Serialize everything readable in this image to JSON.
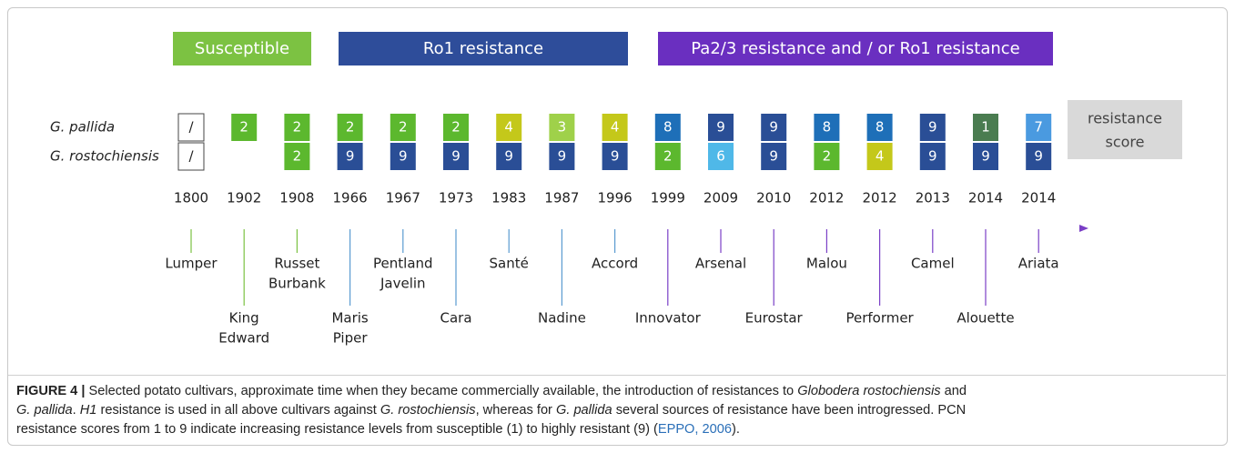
{
  "figure": {
    "groups": [
      {
        "label": "Susceptible",
        "color": "#7cc242"
      },
      {
        "label": "Ro1 resistance",
        "color": "#2e4d9a"
      },
      {
        "label": "Pa2/3 resistance and / or Ro1 resistance",
        "color": "#6a2fc0"
      }
    ],
    "row_labels": [
      "G. pallida",
      "G. rostochiensis"
    ],
    "legend": [
      "resistance",
      "score"
    ],
    "columns": [
      {
        "year": "1800",
        "cultivar": [
          "Lumper"
        ],
        "line_color": "#7cc242",
        "pallida": {
          "score": "/",
          "color": "#ffffff"
        },
        "rostochiensis": {
          "score": "/",
          "color": "#ffffff"
        }
      },
      {
        "year": "1902",
        "cultivar": [
          "King",
          "Edward"
        ],
        "line_color": "#7cc242",
        "pallida": {
          "score": "2",
          "color": "#5cb82e"
        },
        "rostochiensis": null
      },
      {
        "year": "1908",
        "cultivar": [
          "Russet",
          "Burbank"
        ],
        "line_color": "#7cc242",
        "pallida": {
          "score": "2",
          "color": "#5cb82e"
        },
        "rostochiensis": {
          "score": "2",
          "color": "#5cb82e"
        }
      },
      {
        "year": "1966",
        "cultivar": [
          "Maris",
          "Piper"
        ],
        "line_color": "#5a9bd0",
        "pallida": {
          "score": "2",
          "color": "#5cb82e"
        },
        "rostochiensis": {
          "score": "9",
          "color": "#2a4e96"
        }
      },
      {
        "year": "1967",
        "cultivar": [
          "Pentland",
          "Javelin"
        ],
        "line_color": "#5a9bd0",
        "pallida": {
          "score": "2",
          "color": "#5cb82e"
        },
        "rostochiensis": {
          "score": "9",
          "color": "#2a4e96"
        }
      },
      {
        "year": "1973",
        "cultivar": [
          "Cara"
        ],
        "line_color": "#5a9bd0",
        "pallida": {
          "score": "2",
          "color": "#5cb82e"
        },
        "rostochiensis": {
          "score": "9",
          "color": "#2a4e96"
        }
      },
      {
        "year": "1983",
        "cultivar": [
          "Santé"
        ],
        "line_color": "#5a9bd0",
        "pallida": {
          "score": "4",
          "color": "#c4c81a"
        },
        "rostochiensis": {
          "score": "9",
          "color": "#2a4e96"
        }
      },
      {
        "year": "1987",
        "cultivar": [
          "Nadine"
        ],
        "line_color": "#5a9bd0",
        "pallida": {
          "score": "3",
          "color": "#9fd14a"
        },
        "rostochiensis": {
          "score": "9",
          "color": "#2a4e96"
        }
      },
      {
        "year": "1996",
        "cultivar": [
          "Accord"
        ],
        "line_color": "#5a9bd0",
        "pallida": {
          "score": "4",
          "color": "#c4c81a"
        },
        "rostochiensis": {
          "score": "9",
          "color": "#2a4e96"
        }
      },
      {
        "year": "1999",
        "cultivar": [
          "Innovator"
        ],
        "line_color": "#7a3fc6",
        "pallida": {
          "score": "8",
          "color": "#1e6fb8"
        },
        "rostochiensis": {
          "score": "2",
          "color": "#5cb82e"
        }
      },
      {
        "year": "2009",
        "cultivar": [
          "Arsenal"
        ],
        "line_color": "#7a3fc6",
        "pallida": {
          "score": "9",
          "color": "#2a4e96"
        },
        "rostochiensis": {
          "score": "6",
          "color": "#4fb8e8"
        }
      },
      {
        "year": "2010",
        "cultivar": [
          "Eurostar"
        ],
        "line_color": "#7a3fc6",
        "pallida": {
          "score": "9",
          "color": "#2a4e96"
        },
        "rostochiensis": {
          "score": "9",
          "color": "#2a4e96"
        }
      },
      {
        "year": "2012",
        "cultivar": [
          "Malou"
        ],
        "line_color": "#7a3fc6",
        "pallida": {
          "score": "8",
          "color": "#1e6fb8"
        },
        "rostochiensis": {
          "score": "2",
          "color": "#5cb82e"
        }
      },
      {
        "year": "2012",
        "cultivar": [
          "Performer"
        ],
        "line_color": "#7a3fc6",
        "pallida": {
          "score": "8",
          "color": "#1e6fb8"
        },
        "rostochiensis": {
          "score": "4",
          "color": "#c4c81a"
        }
      },
      {
        "year": "2013",
        "cultivar": [
          "Camel"
        ],
        "line_color": "#7a3fc6",
        "pallida": {
          "score": "9",
          "color": "#2a4e96"
        },
        "rostochiensis": {
          "score": "9",
          "color": "#2a4e96"
        }
      },
      {
        "year": "2014",
        "cultivar": [
          "Alouette"
        ],
        "line_color": "#7a3fc6",
        "pallida": {
          "score": "1",
          "color": "#4a7c50"
        },
        "rostochiensis": {
          "score": "9",
          "color": "#2a4e96"
        }
      },
      {
        "year": "2014",
        "cultivar": [
          "Ariata"
        ],
        "line_color": "#7a3fc6",
        "pallida": {
          "score": "7",
          "color": "#4a9ae0"
        },
        "rostochiensis": {
          "score": "9",
          "color": "#2a4e96"
        }
      }
    ],
    "caption": [
      [
        {
          "text": "FIGURE 4 |",
          "style": "bold"
        },
        {
          "text": " Selected potato cultivars, approximate time when they became commercially available, the introduction of resistances to ",
          "style": "normal"
        },
        {
          "text": "Globodera rostochiensis",
          "style": "italic"
        },
        {
          "text": " and",
          "style": "normal"
        }
      ],
      [
        {
          "text": "G. pallida",
          "style": "italic"
        },
        {
          "text": ". ",
          "style": "normal"
        },
        {
          "text": "H1",
          "style": "italic"
        },
        {
          "text": " resistance is used in all above cultivars against ",
          "style": "normal"
        },
        {
          "text": "G. rostochiensis",
          "style": "italic"
        },
        {
          "text": ", whereas for ",
          "style": "normal"
        },
        {
          "text": "G. pallida",
          "style": "italic"
        },
        {
          "text": " several sources of resistance have been introgressed. PCN",
          "style": "normal"
        }
      ],
      [
        {
          "text": "resistance scores from 1 to 9 indicate increasing resistance levels from susceptible (1) to highly resistant (9) (",
          "style": "normal"
        },
        {
          "text": "EPPO, 2006",
          "style": "link"
        },
        {
          "text": ").",
          "style": "normal"
        }
      ]
    ]
  }
}
